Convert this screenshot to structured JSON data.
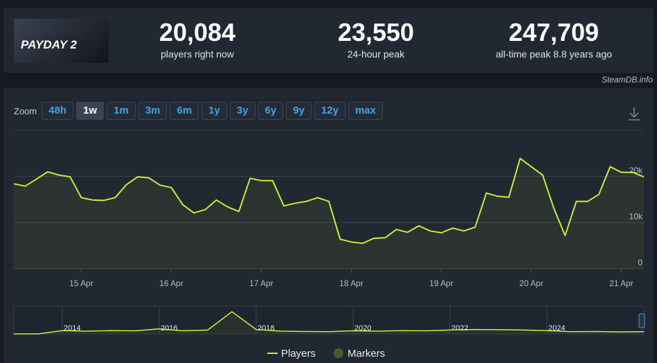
{
  "header": {
    "logo_text": "PAYDAY 2",
    "stats": [
      {
        "value": "20,084",
        "label": "players right now"
      },
      {
        "value": "23,550",
        "label": "24-hour peak"
      },
      {
        "value": "247,709",
        "label": "all-time peak 8.8 years ago"
      }
    ]
  },
  "site": "SteamDB.info",
  "zoom": {
    "label": "Zoom",
    "options": [
      "48h",
      "1w",
      "1m",
      "3m",
      "6m",
      "1y",
      "3y",
      "6y",
      "9y",
      "12y",
      "max"
    ],
    "active": "1w"
  },
  "chart_data": [
    {
      "type": "line",
      "xlim": [
        0,
        56
      ],
      "xticks": [
        {
          "value": 6,
          "label": "15 Apr"
        },
        {
          "value": 14,
          "label": "16 Apr"
        },
        {
          "value": 22,
          "label": "17 Apr"
        },
        {
          "value": 30,
          "label": "18 Apr"
        },
        {
          "value": 38,
          "label": "19 Apr"
        },
        {
          "value": 46,
          "label": "20 Apr"
        },
        {
          "value": 54,
          "label": "21 Apr"
        }
      ],
      "ylim": [
        0,
        30000
      ],
      "yticks": [
        0,
        {
          "value": 10000,
          "label": "10k"
        },
        {
          "value": 20000,
          "label": "20k"
        }
      ],
      "grid": true,
      "series": [
        {
          "name": "Players",
          "color": "#c6ef3a",
          "values": [
            18400,
            17900,
            19400,
            21000,
            20300,
            19900,
            15400,
            14900,
            14800,
            15400,
            18200,
            19900,
            19700,
            18100,
            17600,
            13900,
            12100,
            12800,
            14900,
            13400,
            12400,
            19600,
            19100,
            19100,
            13600,
            14200,
            14600,
            15400,
            14600,
            6400,
            5800,
            5500,
            6600,
            6700,
            8500,
            7900,
            9300,
            8200,
            7800,
            8800,
            8200,
            9000,
            16400,
            15700,
            15500,
            23900,
            22100,
            20300,
            13100,
            7200,
            14600,
            14600,
            16100,
            22100,
            20900,
            20900,
            19900
          ]
        }
      ],
      "markers_label": "Markers"
    },
    {
      "type": "line",
      "xlim": [
        0,
        26
      ],
      "xticks": [
        {
          "value": 2,
          "label": "2014"
        },
        {
          "value": 6,
          "label": "2016"
        },
        {
          "value": 10,
          "label": "2018"
        },
        {
          "value": 14,
          "label": "2020"
        },
        {
          "value": 18,
          "label": "2022"
        },
        {
          "value": 22,
          "label": "2024"
        }
      ],
      "ylim": [
        0,
        250000
      ],
      "series": [
        {
          "name": "Players",
          "color": "#c6ef3a",
          "values": [
            0,
            0,
            30000,
            25000,
            30000,
            28000,
            45000,
            28000,
            35000,
            200000,
            40000,
            25000,
            22000,
            20000,
            28000,
            25000,
            30000,
            28000,
            35000,
            40000,
            38000,
            35000,
            30000,
            20000,
            22000,
            18000,
            20000
          ]
        }
      ]
    }
  ]
}
